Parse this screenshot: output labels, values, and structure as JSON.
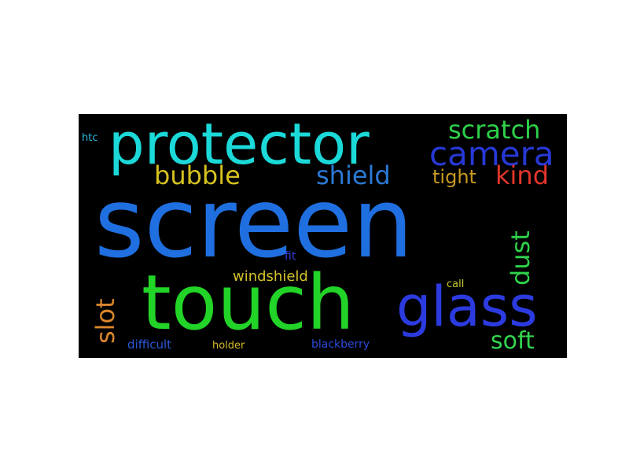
{
  "words": [
    {
      "text": "screen",
      "color": "#1f6fe0"
    },
    {
      "text": "touch",
      "color": "#22d427"
    },
    {
      "text": "protector",
      "color": "#1cd9d9"
    },
    {
      "text": "glass",
      "color": "#2c3be0"
    },
    {
      "text": "camera",
      "color": "#2738d6"
    },
    {
      "text": "scratch",
      "color": "#2ed14a"
    },
    {
      "text": "shield",
      "color": "#2a7ad6"
    },
    {
      "text": "bubble",
      "color": "#d6c21f"
    },
    {
      "text": "tight",
      "color": "#c89a22"
    },
    {
      "text": "kind",
      "color": "#e2352a"
    },
    {
      "text": "dust",
      "color": "#2fd14b"
    },
    {
      "text": "slot",
      "color": "#d9862a"
    },
    {
      "text": "soft",
      "color": "#33d44f"
    },
    {
      "text": "windshield",
      "color": "#d4c42a"
    },
    {
      "text": "fit",
      "color": "#2f3fd4"
    },
    {
      "text": "call",
      "color": "#c6c92c"
    },
    {
      "text": "htc",
      "color": "#2bb8d9"
    },
    {
      "text": "difficult",
      "color": "#2a58d6"
    },
    {
      "text": "holder",
      "color": "#d4b82a"
    },
    {
      "text": "blackberry",
      "color": "#2a4ad6"
    }
  ]
}
